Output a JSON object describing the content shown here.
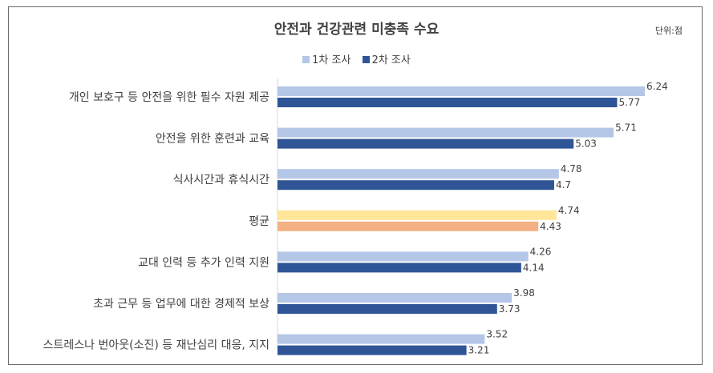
{
  "chart_data": {
    "type": "bar",
    "orientation": "horizontal",
    "title": "안전과 건강관련 미충족 수요",
    "unit": "단위:점",
    "xlim": [
      0,
      6.5
    ],
    "grid": false,
    "legend_position": "top",
    "categories": [
      "개인 보호구 등 안전을 위한 필수 자원 제공",
      "안전을 위한 훈련과 교육",
      "식사시간과 휴식시간",
      "평균",
      "교대 인력 등 추가 인력 지원",
      "초과 근무 등 업무에 대한 경제적 보상",
      "스트레스나 번아웃(소진) 등 재난심리 대응, 지지"
    ],
    "series": [
      {
        "name": "1차 조사",
        "values": [
          6.24,
          5.71,
          4.78,
          4.74,
          4.26,
          3.98,
          3.52
        ],
        "labels": [
          "6.24",
          "5.71",
          "4.78",
          "4.74",
          "4.26",
          "3.98",
          "3.52"
        ],
        "color": "#b4c7e7"
      },
      {
        "name": "2차 조사",
        "values": [
          5.77,
          5.03,
          4.7,
          4.43,
          4.14,
          3.73,
          3.21
        ],
        "labels": [
          "5.77",
          "5.03",
          "4.7",
          "4.43",
          "4.14",
          "3.73",
          "3.21"
        ],
        "color": "#2f5597"
      }
    ],
    "highlight": {
      "category_index": 3,
      "colors": [
        "#ffe699",
        "#f4b183"
      ]
    }
  }
}
